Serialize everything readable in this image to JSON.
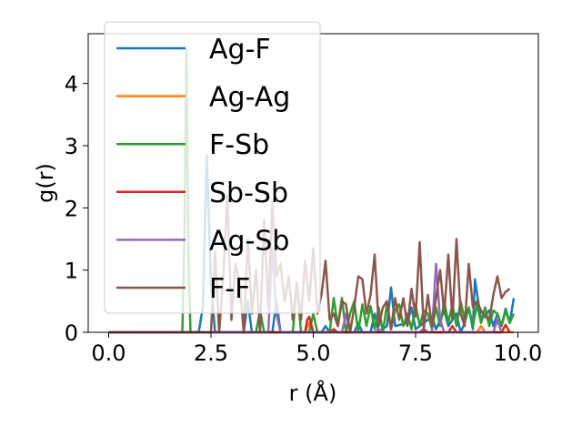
{
  "chart_data": {
    "type": "line",
    "xlabel": "r (Å)",
    "ylabel": "g(r)",
    "xlim": [
      -0.5,
      10.5
    ],
    "ylim": [
      0,
      4.8
    ],
    "xticks": [
      0.0,
      2.5,
      5.0,
      7.5,
      10.0
    ],
    "xtick_labels": [
      "0.0",
      "2.5",
      "5.0",
      "7.5",
      "10.0"
    ],
    "yticks": [
      0,
      1,
      2,
      3,
      4
    ],
    "ytick_labels": [
      "0",
      "1",
      "2",
      "3",
      "4"
    ],
    "legend_position": "upper-left",
    "series": [
      {
        "name": "Ag-F",
        "color": "#1f77b4",
        "points": [
          [
            0,
            0
          ],
          [
            2.2,
            0
          ],
          [
            2.3,
            0.4
          ],
          [
            2.4,
            2.85
          ],
          [
            2.5,
            0.8
          ],
          [
            2.6,
            0
          ],
          [
            3.3,
            0
          ],
          [
            3.4,
            0.5
          ],
          [
            3.5,
            0
          ],
          [
            4.0,
            0
          ],
          [
            4.1,
            0.5
          ],
          [
            4.2,
            0
          ],
          [
            5.2,
            0
          ],
          [
            5.3,
            0.1
          ],
          [
            5.4,
            0
          ],
          [
            6.0,
            0
          ],
          [
            6.1,
            0.15
          ],
          [
            6.2,
            0
          ],
          [
            6.4,
            0
          ],
          [
            6.5,
            0.3
          ],
          [
            6.6,
            0
          ],
          [
            6.8,
            0.1
          ],
          [
            6.9,
            0.72
          ],
          [
            7.0,
            0.1
          ],
          [
            7.3,
            0.15
          ],
          [
            7.4,
            0.4
          ],
          [
            7.5,
            0.05
          ],
          [
            7.9,
            0.25
          ],
          [
            8.0,
            0.05
          ],
          [
            8.2,
            0.35
          ],
          [
            8.3,
            0.1
          ],
          [
            8.5,
            0.3
          ],
          [
            8.6,
            0.0
          ],
          [
            8.7,
            0.15
          ],
          [
            8.8,
            0.4
          ],
          [
            8.9,
            0.05
          ],
          [
            8.95,
            0.85
          ],
          [
            9.1,
            0.2
          ],
          [
            9.3,
            0.35
          ],
          [
            9.4,
            0.1
          ],
          [
            9.5,
            0.3
          ],
          [
            9.6,
            0.1
          ],
          [
            9.7,
            0.38
          ],
          [
            9.8,
            0.15
          ],
          [
            9.9,
            0.55
          ]
        ]
      },
      {
        "name": "Ag-Ag",
        "color": "#ff7f0e",
        "points": [
          [
            0,
            0
          ],
          [
            4.8,
            0
          ],
          [
            4.9,
            0.15
          ],
          [
            5.0,
            0
          ],
          [
            9.0,
            0
          ],
          [
            9.1,
            0.1
          ],
          [
            9.2,
            0
          ],
          [
            9.9,
            0
          ]
        ]
      },
      {
        "name": "F-Sb",
        "color": "#2ca02c",
        "points": [
          [
            0,
            0
          ],
          [
            1.8,
            0
          ],
          [
            1.85,
            1.5
          ],
          [
            1.9,
            4.55
          ],
          [
            1.95,
            1.2
          ],
          [
            2.0,
            0
          ],
          [
            3.6,
            0
          ],
          [
            3.7,
            0.35
          ],
          [
            3.8,
            0
          ],
          [
            4.5,
            0
          ],
          [
            4.6,
            0.8
          ],
          [
            4.7,
            0
          ],
          [
            4.9,
            0
          ],
          [
            5.0,
            0.3
          ],
          [
            5.1,
            0
          ],
          [
            5.4,
            0
          ],
          [
            5.5,
            0.55
          ],
          [
            5.6,
            0.1
          ],
          [
            5.7,
            0.55
          ],
          [
            5.8,
            0
          ],
          [
            5.9,
            0.3
          ],
          [
            6.0,
            0.5
          ],
          [
            6.1,
            0
          ],
          [
            6.2,
            0.45
          ],
          [
            6.3,
            0.1
          ],
          [
            6.4,
            0.42
          ],
          [
            6.5,
            0.05
          ],
          [
            6.6,
            0.4
          ],
          [
            6.7,
            0
          ],
          [
            6.8,
            0.45
          ],
          [
            6.9,
            0.05
          ],
          [
            7.0,
            0.35
          ],
          [
            7.1,
            0.45
          ],
          [
            7.2,
            0.1
          ],
          [
            7.3,
            0.3
          ],
          [
            7.4,
            0.05
          ],
          [
            7.5,
            0.45
          ],
          [
            7.6,
            0.1
          ],
          [
            7.7,
            0.35
          ],
          [
            7.8,
            0.3
          ],
          [
            7.9,
            0.05
          ],
          [
            8.0,
            0.4
          ],
          [
            8.1,
            0.1
          ],
          [
            8.2,
            0.5
          ],
          [
            8.3,
            0.15
          ],
          [
            8.4,
            0.45
          ],
          [
            8.5,
            0.1
          ],
          [
            8.6,
            0.5
          ],
          [
            8.7,
            0.2
          ],
          [
            8.8,
            0.4
          ],
          [
            8.9,
            0.1
          ],
          [
            9.0,
            0.45
          ],
          [
            9.1,
            0.15
          ],
          [
            9.2,
            0.4
          ],
          [
            9.3,
            0.1
          ],
          [
            9.4,
            0.35
          ],
          [
            9.5,
            0.3
          ],
          [
            9.6,
            0.1
          ],
          [
            9.7,
            0.35
          ],
          [
            9.8,
            0.15
          ],
          [
            9.9,
            0.3
          ]
        ]
      },
      {
        "name": "Sb-Sb",
        "color": "#d62728",
        "points": [
          [
            0,
            0
          ],
          [
            4.8,
            0
          ],
          [
            4.85,
            0.2
          ],
          [
            4.9,
            0.25
          ],
          [
            5.0,
            0
          ],
          [
            5.4,
            0
          ],
          [
            5.5,
            0.05
          ],
          [
            5.6,
            0
          ],
          [
            7.6,
            0
          ],
          [
            7.7,
            0.05
          ],
          [
            7.8,
            0
          ],
          [
            8.3,
            0
          ],
          [
            8.4,
            0.1
          ],
          [
            8.5,
            0
          ],
          [
            9.6,
            0
          ],
          [
            9.7,
            0.12
          ],
          [
            9.8,
            0
          ]
        ]
      },
      {
        "name": "Ag-Sb",
        "color": "#9467bd",
        "points": [
          [
            0,
            0
          ],
          [
            3.9,
            0
          ],
          [
            4.0,
            1.35
          ],
          [
            4.1,
            0.3
          ],
          [
            4.2,
            0
          ],
          [
            5.7,
            0
          ],
          [
            5.8,
            0.3
          ],
          [
            5.9,
            0
          ],
          [
            6.5,
            0
          ],
          [
            6.6,
            0.05
          ],
          [
            6.7,
            0
          ],
          [
            7.9,
            0
          ],
          [
            8.0,
            1.1
          ],
          [
            8.1,
            0.2
          ],
          [
            8.2,
            0
          ],
          [
            9.4,
            0
          ],
          [
            9.5,
            0.2
          ],
          [
            9.6,
            0
          ]
        ]
      },
      {
        "name": "F-F",
        "color": "#8c564b",
        "points": [
          [
            0,
            0
          ],
          [
            2.5,
            0
          ],
          [
            2.6,
            1.3
          ],
          [
            2.7,
            0
          ],
          [
            2.8,
            0.9
          ],
          [
            2.9,
            2.2
          ],
          [
            3.0,
            0.2
          ],
          [
            3.1,
            1.1
          ],
          [
            3.2,
            0.8
          ],
          [
            3.3,
            0
          ],
          [
            3.4,
            1.5
          ],
          [
            3.5,
            0.3
          ],
          [
            3.6,
            1.0
          ],
          [
            3.7,
            0
          ],
          [
            3.8,
            1.8
          ],
          [
            3.9,
            0.4
          ],
          [
            4.0,
            2.1
          ],
          [
            4.1,
            0.9
          ],
          [
            4.2,
            1.1
          ],
          [
            4.3,
            0.5
          ],
          [
            4.4,
            0.9
          ],
          [
            4.5,
            0.2
          ],
          [
            4.6,
            0.8
          ],
          [
            4.7,
            0.2
          ],
          [
            4.8,
            1.15
          ],
          [
            4.9,
            0.5
          ],
          [
            5.0,
            1.35
          ],
          [
            5.1,
            0.3
          ],
          [
            5.2,
            0.6
          ],
          [
            5.3,
            1.15
          ],
          [
            5.4,
            0.2
          ],
          [
            5.5,
            0.3
          ],
          [
            5.6,
            0.1
          ],
          [
            5.7,
            0.5
          ],
          [
            5.8,
            0.45
          ],
          [
            5.9,
            0
          ],
          [
            6.0,
            0.4
          ],
          [
            6.1,
            0.9
          ],
          [
            6.2,
            0.85
          ],
          [
            6.3,
            0.3
          ],
          [
            6.4,
            0.6
          ],
          [
            6.5,
            1.25
          ],
          [
            6.6,
            0.1
          ],
          [
            6.7,
            0.4
          ],
          [
            6.8,
            0.5
          ],
          [
            6.9,
            0.05
          ],
          [
            7.0,
            0.55
          ],
          [
            7.1,
            0.2
          ],
          [
            7.2,
            0.55
          ],
          [
            7.3,
            0.1
          ],
          [
            7.4,
            0.7
          ],
          [
            7.5,
            0.25
          ],
          [
            7.6,
            1.45
          ],
          [
            7.7,
            0.05
          ],
          [
            7.8,
            0.6
          ],
          [
            7.9,
            0.1
          ],
          [
            8.0,
            0.55
          ],
          [
            8.1,
            1.0
          ],
          [
            8.2,
            0.3
          ],
          [
            8.3,
            1.25
          ],
          [
            8.4,
            0.2
          ],
          [
            8.5,
            1.5
          ],
          [
            8.6,
            0.3
          ],
          [
            8.7,
            0.1
          ],
          [
            8.8,
            1.1
          ],
          [
            8.9,
            0.4
          ],
          [
            9.0,
            0.5
          ],
          [
            9.1,
            0.35
          ],
          [
            9.2,
            0.25
          ],
          [
            9.3,
            0.2
          ],
          [
            9.4,
            0.6
          ],
          [
            9.5,
            0.9
          ],
          [
            9.6,
            0.55
          ],
          [
            9.7,
            0.65
          ],
          [
            9.8,
            0.7
          ]
        ]
      }
    ]
  }
}
